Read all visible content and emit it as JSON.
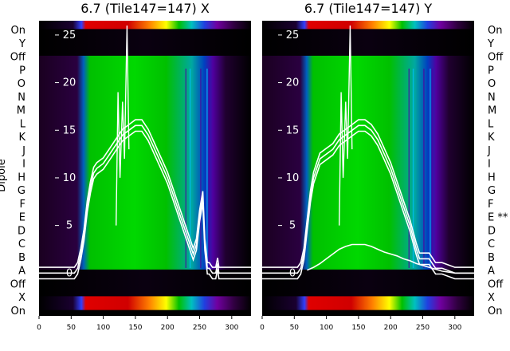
{
  "ylabel": "Dipole",
  "row_labels_left": [
    "On",
    "Y",
    "Off",
    "P",
    "O",
    "N",
    "M",
    "L",
    "K",
    "J",
    "I",
    "H",
    "G",
    "F",
    "E",
    "D",
    "C",
    "B",
    "A",
    "Off",
    "X",
    "On"
  ],
  "row_labels_right": [
    "On",
    "Y",
    "Off",
    "P",
    "O",
    "N",
    "M",
    "L",
    "K",
    "J",
    "I",
    "H",
    "G",
    "F",
    "E **",
    "D",
    "C",
    "B",
    "A",
    "Off",
    "X",
    "On"
  ],
  "colors": {
    "band_low": "#000000",
    "band_mid": "#00c000",
    "band_high": "#e00000",
    "violet": "#7a00a0",
    "trace": "#ffffff"
  },
  "chart_data": [
    {
      "type": "heatmap",
      "title": "6.7 (Tile147=147) X",
      "x_ticks": [
        0,
        50,
        100,
        150,
        200,
        250,
        300
      ],
      "xlim": [
        0,
        330
      ],
      "y_ticks": [
        0,
        5,
        10,
        15,
        20,
        25
      ],
      "ylim": [
        -4.5,
        26.5
      ],
      "series": [
        {
          "x": [
            0,
            20,
            40,
            55,
            60,
            65,
            70,
            75,
            80,
            85,
            90,
            100,
            110,
            120,
            130,
            140,
            150,
            160,
            170,
            180,
            190,
            200,
            210,
            220,
            230,
            240,
            245,
            250,
            255,
            258,
            262,
            265,
            270,
            275,
            278,
            280,
            285,
            290,
            300,
            320,
            330
          ],
          "y": [
            0,
            0,
            0,
            0,
            0.5,
            2,
            4,
            7,
            9,
            10.5,
            11,
            11.5,
            12.5,
            13.5,
            14.5,
            15,
            15.5,
            15.5,
            14.5,
            13,
            11.5,
            10,
            8,
            6,
            4,
            2,
            3,
            6,
            8,
            3,
            0.5,
            0.5,
            0,
            0,
            1,
            0,
            0,
            0,
            0,
            0,
            0
          ]
        }
      ]
    },
    {
      "type": "heatmap",
      "title": "6.7 (Tile147=147) Y",
      "x_ticks": [
        0,
        50,
        100,
        150,
        200,
        250,
        300
      ],
      "xlim": [
        0,
        330
      ],
      "y_ticks": [
        0,
        5,
        10,
        15,
        20,
        25
      ],
      "ylim": [
        -4.5,
        26.5
      ],
      "series": [
        {
          "x": [
            0,
            20,
            40,
            55,
            60,
            65,
            70,
            75,
            80,
            85,
            90,
            100,
            110,
            120,
            130,
            140,
            150,
            160,
            170,
            180,
            190,
            200,
            210,
            220,
            230,
            240,
            245,
            250,
            255,
            260,
            265,
            270,
            280,
            300,
            320,
            330
          ],
          "y": [
            0,
            0,
            0,
            0,
            0.5,
            2,
            5,
            8,
            10,
            11,
            12,
            12.5,
            13,
            14,
            14.5,
            15,
            15.5,
            15.5,
            15,
            14,
            12.5,
            11,
            9,
            7,
            5,
            2.5,
            1.5,
            1.5,
            1.5,
            1.5,
            1,
            0.5,
            0.5,
            0,
            0,
            0
          ],
          "extra": [
            {
              "x": [
                70,
                80,
                90,
                100,
                110,
                120,
                130,
                140,
                150,
                160,
                170,
                180,
                190,
                200,
                210,
                220,
                230,
                240,
                250,
                260,
                270,
                280,
                300,
                330
              ],
              "y": [
                0.3,
                0.6,
                1.0,
                1.5,
                2.0,
                2.5,
                2.8,
                3.0,
                3.0,
                3.0,
                2.8,
                2.5,
                2.2,
                2.0,
                1.8,
                1.5,
                1.3,
                1.0,
                0.8,
                0.6,
                0.4,
                0.2,
                0,
                0
              ]
            }
          ]
        }
      ]
    }
  ]
}
